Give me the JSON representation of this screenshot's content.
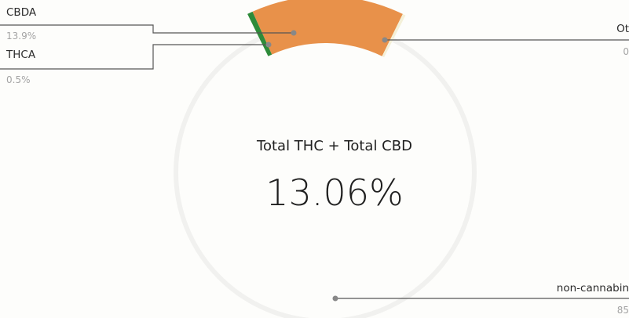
{
  "chart_data": {
    "type": "pie",
    "donut": true,
    "center_label": "Total THC + Total CBD",
    "center_value": "13.06%",
    "slices": [
      {
        "name": "CBDA",
        "value_text": "13.9%",
        "value": 13.9,
        "color": "#e8914a"
      },
      {
        "name": "THCA",
        "value_text": "0.5%",
        "value": 0.5,
        "color": "#2e8b3a"
      },
      {
        "name": "Ot",
        "value_text": "0",
        "value": 0.0,
        "color": "#f4f0d8"
      },
      {
        "name": "non-cannabin",
        "value_text": "85",
        "value": 85.0,
        "color": "#ffffff"
      }
    ]
  }
}
